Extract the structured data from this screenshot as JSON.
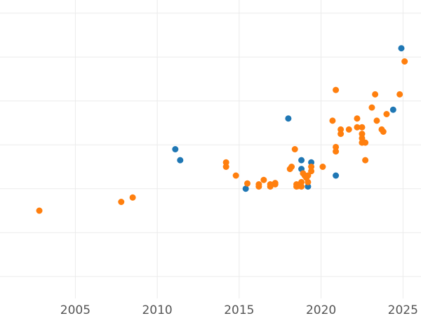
{
  "chart_data": {
    "type": "scatter",
    "title": "",
    "xlabel": "",
    "ylabel": "",
    "xlim": [
      2000.4,
      2026.1
    ],
    "ylim": [
      -0.5,
      6.3
    ],
    "grid": true,
    "x_ticks": [
      2005,
      2010,
      2015,
      2020,
      2025
    ],
    "x_tick_labels": [
      "2005",
      "2010",
      "2015",
      "2020",
      "2025"
    ],
    "y_grid": [
      0,
      1,
      2,
      3,
      4,
      5,
      6
    ],
    "series": [
      {
        "name": "blue",
        "color": "#1f77b4",
        "points": [
          [
            2011.1,
            2.9
          ],
          [
            2011.4,
            2.65
          ],
          [
            2015.4,
            2.0
          ],
          [
            2018.0,
            3.6
          ],
          [
            2018.8,
            2.65
          ],
          [
            2018.8,
            2.45
          ],
          [
            2019.2,
            2.05
          ],
          [
            2019.4,
            2.6
          ],
          [
            2020.9,
            2.3
          ],
          [
            2024.4,
            3.8
          ],
          [
            2024.9,
            5.2
          ]
        ]
      },
      {
        "name": "orange",
        "color": "#ff7f0e",
        "points": [
          [
            2002.8,
            1.5
          ],
          [
            2007.8,
            1.7
          ],
          [
            2008.5,
            1.8
          ],
          [
            2014.2,
            2.6
          ],
          [
            2014.2,
            2.5
          ],
          [
            2014.8,
            2.3
          ],
          [
            2015.5,
            2.12
          ],
          [
            2016.2,
            2.1
          ],
          [
            2016.2,
            2.05
          ],
          [
            2016.5,
            2.2
          ],
          [
            2016.9,
            2.05
          ],
          [
            2016.9,
            2.1
          ],
          [
            2017.2,
            2.13
          ],
          [
            2017.2,
            2.1
          ],
          [
            2018.1,
            2.45
          ],
          [
            2018.2,
            2.5
          ],
          [
            2018.4,
            2.9
          ],
          [
            2018.5,
            2.1
          ],
          [
            2018.5,
            2.05
          ],
          [
            2018.6,
            2.06
          ],
          [
            2018.7,
            2.1
          ],
          [
            2018.8,
            2.05
          ],
          [
            2018.8,
            2.15
          ],
          [
            2018.9,
            2.35
          ],
          [
            2019.0,
            2.3
          ],
          [
            2019.1,
            2.25
          ],
          [
            2019.2,
            2.3
          ],
          [
            2019.2,
            2.15
          ],
          [
            2019.4,
            2.5
          ],
          [
            2019.4,
            2.4
          ],
          [
            2020.1,
            2.5
          ],
          [
            2020.7,
            3.55
          ],
          [
            2020.9,
            4.25
          ],
          [
            2020.9,
            2.95
          ],
          [
            2020.9,
            2.85
          ],
          [
            2021.2,
            3.35
          ],
          [
            2021.2,
            3.25
          ],
          [
            2021.7,
            3.35
          ],
          [
            2022.2,
            3.6
          ],
          [
            2022.2,
            3.4
          ],
          [
            2022.5,
            3.4
          ],
          [
            2022.5,
            3.25
          ],
          [
            2022.5,
            3.15
          ],
          [
            2022.5,
            3.05
          ],
          [
            2022.7,
            3.05
          ],
          [
            2022.7,
            2.65
          ],
          [
            2023.1,
            3.85
          ],
          [
            2023.3,
            4.15
          ],
          [
            2023.4,
            3.55
          ],
          [
            2023.7,
            3.35
          ],
          [
            2023.8,
            3.3
          ],
          [
            2024.0,
            3.7
          ],
          [
            2024.8,
            4.15
          ],
          [
            2025.1,
            4.9
          ]
        ]
      }
    ]
  }
}
